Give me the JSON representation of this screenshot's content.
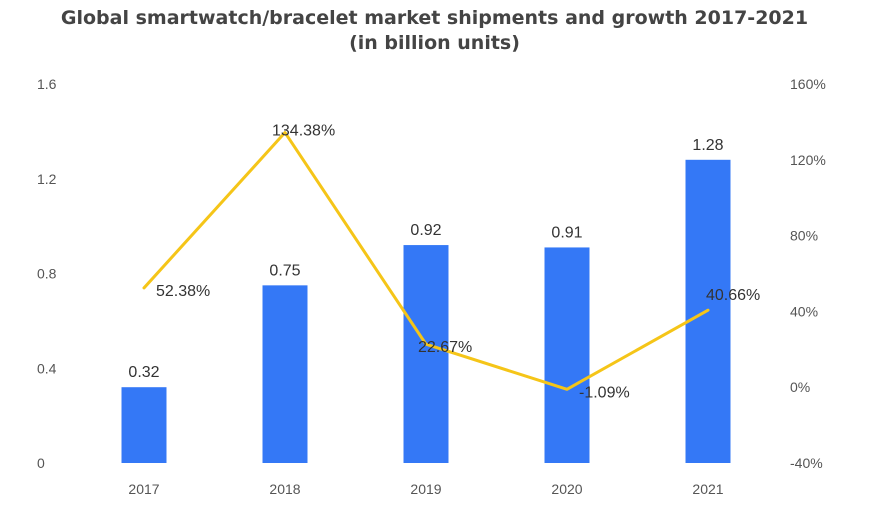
{
  "chart_data": {
    "type": "bar",
    "title_line1": "Global smartwatch/bracelet market shipments and growth 2017-2021",
    "title_line2": "(in billion units)",
    "categories": [
      "2017",
      "2018",
      "2019",
      "2020",
      "2021"
    ],
    "series": [
      {
        "type": "bar",
        "axis": "left",
        "values": [
          0.32,
          0.75,
          0.92,
          0.91,
          1.28
        ],
        "labels": [
          "0.32",
          "0.75",
          "0.92",
          "0.91",
          "1.28"
        ],
        "color": "#3478f6"
      },
      {
        "type": "line",
        "axis": "right",
        "values": [
          52.38,
          134.38,
          22.67,
          -1.09,
          40.66
        ],
        "labels": [
          "52.38%",
          "134.38%",
          "22.67%",
          "-1.09%",
          "40.66%"
        ],
        "color": "#f5c518"
      }
    ],
    "y_left": {
      "min": 0,
      "max": 1.6,
      "ticks": [
        "0",
        "0.4",
        "0.8",
        "1.2",
        "1.6"
      ]
    },
    "y_right": {
      "min": -40,
      "max": 160,
      "ticks": [
        "-40%",
        "0%",
        "40%",
        "80%",
        "120%",
        "160%"
      ]
    },
    "grid": false,
    "legend": "none"
  }
}
